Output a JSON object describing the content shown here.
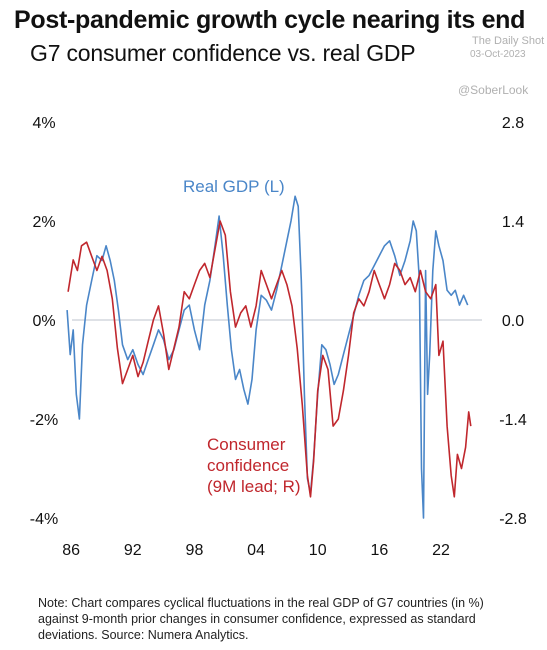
{
  "title": "Post-pandemic growth cycle nearing its end",
  "subtitle": "G7 consumer confidence vs. real GDP",
  "watermark": {
    "line1": "The Daily Shot",
    "line2": "03-Oct-2023",
    "handle": "@SoberLook"
  },
  "note": "Note: Chart compares cyclical fluctuations in the real GDP of G7 countries (in %) against 9-month prior changes in consumer confidence, expressed as standard deviations. Source: Numera Analytics.",
  "colors": {
    "gdp": "#4a86c8",
    "confidence": "#c0272d",
    "zero_line": "#c9cfd6",
    "text": "#111111"
  },
  "chart_data": {
    "type": "line",
    "x_ticks": [
      "86",
      "92",
      "98",
      "04",
      "10",
      "16",
      "22"
    ],
    "x_tick_years": [
      1986,
      1992,
      1998,
      2004,
      2010,
      2016,
      2022
    ],
    "xlim": [
      1985.3,
      2025.8
    ],
    "y_left": {
      "ticks": [
        "4%",
        "2%",
        "0%",
        "-2%",
        "-4%"
      ],
      "tick_values": [
        4,
        2,
        0,
        -2,
        -4
      ],
      "range": [
        -4,
        4
      ]
    },
    "y_right": {
      "ticks": [
        "2.8",
        "1.4",
        "0.0",
        "-1.4",
        "-2.8"
      ],
      "tick_values": [
        2.8,
        1.4,
        0,
        -1.4,
        -2.8
      ],
      "range": [
        -2.8,
        2.8
      ]
    },
    "zero_line": true,
    "series": [
      {
        "name": "Real GDP (L)",
        "axis": "left",
        "color": "#4a86c8",
        "points": [
          [
            1985.6,
            0.2
          ],
          [
            1985.9,
            -0.7
          ],
          [
            1986.2,
            -0.2
          ],
          [
            1986.5,
            -1.5
          ],
          [
            1986.8,
            -2.0
          ],
          [
            1987.1,
            -0.5
          ],
          [
            1987.5,
            0.3
          ],
          [
            1988.0,
            0.8
          ],
          [
            1988.5,
            1.3
          ],
          [
            1989.0,
            1.2
          ],
          [
            1989.4,
            1.5
          ],
          [
            1989.8,
            1.2
          ],
          [
            1990.2,
            0.8
          ],
          [
            1990.6,
            0.2
          ],
          [
            1991.0,
            -0.5
          ],
          [
            1991.5,
            -0.8
          ],
          [
            1992.0,
            -0.6
          ],
          [
            1992.5,
            -0.9
          ],
          [
            1993.0,
            -1.1
          ],
          [
            1993.5,
            -0.8
          ],
          [
            1994.0,
            -0.5
          ],
          [
            1994.5,
            -0.2
          ],
          [
            1995.0,
            -0.4
          ],
          [
            1995.5,
            -0.8
          ],
          [
            1996.0,
            -0.6
          ],
          [
            1996.5,
            -0.2
          ],
          [
            1997.0,
            0.2
          ],
          [
            1997.5,
            0.3
          ],
          [
            1998.0,
            -0.2
          ],
          [
            1998.5,
            -0.6
          ],
          [
            1999.0,
            0.3
          ],
          [
            1999.5,
            0.8
          ],
          [
            2000.0,
            1.5
          ],
          [
            2000.4,
            2.1
          ],
          [
            2000.8,
            1.3
          ],
          [
            2001.2,
            0.3
          ],
          [
            2001.6,
            -0.6
          ],
          [
            2002.0,
            -1.2
          ],
          [
            2002.4,
            -1.0
          ],
          [
            2002.8,
            -1.4
          ],
          [
            2003.2,
            -1.7
          ],
          [
            2003.6,
            -1.2
          ],
          [
            2004.0,
            -0.2
          ],
          [
            2004.5,
            0.5
          ],
          [
            2005.0,
            0.4
          ],
          [
            2005.5,
            0.2
          ],
          [
            2006.0,
            0.6
          ],
          [
            2006.5,
            1.1
          ],
          [
            2007.0,
            1.6
          ],
          [
            2007.4,
            2.0
          ],
          [
            2007.8,
            2.5
          ],
          [
            2008.1,
            2.3
          ],
          [
            2008.4,
            0.8
          ],
          [
            2008.7,
            -1.5
          ],
          [
            2009.0,
            -3.2
          ],
          [
            2009.3,
            -3.5
          ],
          [
            2009.6,
            -2.8
          ],
          [
            2010.0,
            -1.5
          ],
          [
            2010.4,
            -0.5
          ],
          [
            2010.8,
            -0.6
          ],
          [
            2011.2,
            -0.9
          ],
          [
            2011.6,
            -1.3
          ],
          [
            2012.0,
            -1.1
          ],
          [
            2012.5,
            -0.7
          ],
          [
            2013.0,
            -0.3
          ],
          [
            2013.5,
            0.1
          ],
          [
            2014.0,
            0.5
          ],
          [
            2014.5,
            0.8
          ],
          [
            2015.0,
            0.9
          ],
          [
            2015.5,
            1.1
          ],
          [
            2016.0,
            1.3
          ],
          [
            2016.5,
            1.5
          ],
          [
            2017.0,
            1.6
          ],
          [
            2017.5,
            1.3
          ],
          [
            2018.0,
            0.9
          ],
          [
            2018.5,
            1.2
          ],
          [
            2019.0,
            1.6
          ],
          [
            2019.3,
            2.0
          ],
          [
            2019.6,
            1.8
          ],
          [
            2019.9,
            0.8
          ],
          [
            2020.1,
            -3.0
          ],
          [
            2020.3,
            -4.0
          ],
          [
            2020.5,
            1.0
          ],
          [
            2020.7,
            -1.5
          ],
          [
            2020.9,
            -0.7
          ],
          [
            2021.2,
            1.0
          ],
          [
            2021.5,
            1.8
          ],
          [
            2021.8,
            1.5
          ],
          [
            2022.2,
            1.2
          ],
          [
            2022.6,
            0.6
          ],
          [
            2023.0,
            0.5
          ],
          [
            2023.4,
            0.6
          ],
          [
            2023.8,
            0.3
          ],
          [
            2024.2,
            0.5
          ],
          [
            2024.6,
            0.3
          ]
        ]
      },
      {
        "name": "Consumer confidence (9M lead; R)",
        "label_lines": [
          "Consumer",
          "confidence",
          "(9M lead; R)"
        ],
        "axis": "right",
        "color": "#c0272d",
        "points": [
          [
            1985.7,
            0.4
          ],
          [
            1986.2,
            0.85
          ],
          [
            1986.6,
            0.7
          ],
          [
            1987.0,
            1.05
          ],
          [
            1987.5,
            1.1
          ],
          [
            1988.0,
            0.9
          ],
          [
            1988.5,
            0.7
          ],
          [
            1989.0,
            0.9
          ],
          [
            1989.5,
            0.7
          ],
          [
            1990.0,
            0.3
          ],
          [
            1990.5,
            -0.4
          ],
          [
            1991.0,
            -0.9
          ],
          [
            1991.5,
            -0.7
          ],
          [
            1992.0,
            -0.5
          ],
          [
            1992.5,
            -0.8
          ],
          [
            1993.0,
            -0.6
          ],
          [
            1993.5,
            -0.3
          ],
          [
            1994.0,
            0.0
          ],
          [
            1994.5,
            0.2
          ],
          [
            1995.0,
            -0.2
          ],
          [
            1995.5,
            -0.7
          ],
          [
            1996.0,
            -0.4
          ],
          [
            1996.5,
            -0.1
          ],
          [
            1997.0,
            0.4
          ],
          [
            1997.5,
            0.3
          ],
          [
            1998.0,
            0.5
          ],
          [
            1998.5,
            0.7
          ],
          [
            1999.0,
            0.8
          ],
          [
            1999.5,
            0.6
          ],
          [
            2000.0,
            1.0
          ],
          [
            2000.5,
            1.4
          ],
          [
            2001.0,
            1.2
          ],
          [
            2001.5,
            0.4
          ],
          [
            2002.0,
            -0.1
          ],
          [
            2002.5,
            0.1
          ],
          [
            2003.0,
            0.2
          ],
          [
            2003.5,
            -0.1
          ],
          [
            2004.0,
            0.2
          ],
          [
            2004.5,
            0.7
          ],
          [
            2005.0,
            0.5
          ],
          [
            2005.5,
            0.3
          ],
          [
            2006.0,
            0.5
          ],
          [
            2006.5,
            0.7
          ],
          [
            2007.0,
            0.5
          ],
          [
            2007.5,
            0.2
          ],
          [
            2008.0,
            -0.4
          ],
          [
            2008.5,
            -1.2
          ],
          [
            2009.0,
            -2.2
          ],
          [
            2009.3,
            -2.5
          ],
          [
            2009.6,
            -2.0
          ],
          [
            2010.0,
            -1.0
          ],
          [
            2010.5,
            -0.5
          ],
          [
            2011.0,
            -0.7
          ],
          [
            2011.5,
            -1.5
          ],
          [
            2012.0,
            -1.4
          ],
          [
            2012.5,
            -1.0
          ],
          [
            2013.0,
            -0.5
          ],
          [
            2013.5,
            0.1
          ],
          [
            2014.0,
            0.3
          ],
          [
            2014.5,
            0.2
          ],
          [
            2015.0,
            0.4
          ],
          [
            2015.5,
            0.7
          ],
          [
            2016.0,
            0.5
          ],
          [
            2016.5,
            0.3
          ],
          [
            2017.0,
            0.5
          ],
          [
            2017.5,
            0.8
          ],
          [
            2018.0,
            0.7
          ],
          [
            2018.5,
            0.5
          ],
          [
            2019.0,
            0.6
          ],
          [
            2019.5,
            0.4
          ],
          [
            2020.0,
            0.7
          ],
          [
            2020.5,
            0.4
          ],
          [
            2021.0,
            0.3
          ],
          [
            2021.5,
            0.5
          ],
          [
            2021.8,
            -0.5
          ],
          [
            2022.2,
            -0.3
          ],
          [
            2022.6,
            -1.5
          ],
          [
            2023.0,
            -2.2
          ],
          [
            2023.3,
            -2.5
          ],
          [
            2023.6,
            -1.9
          ],
          [
            2024.0,
            -2.1
          ],
          [
            2024.4,
            -1.8
          ],
          [
            2024.7,
            -1.3
          ],
          [
            2024.9,
            -1.5
          ]
        ]
      }
    ]
  }
}
